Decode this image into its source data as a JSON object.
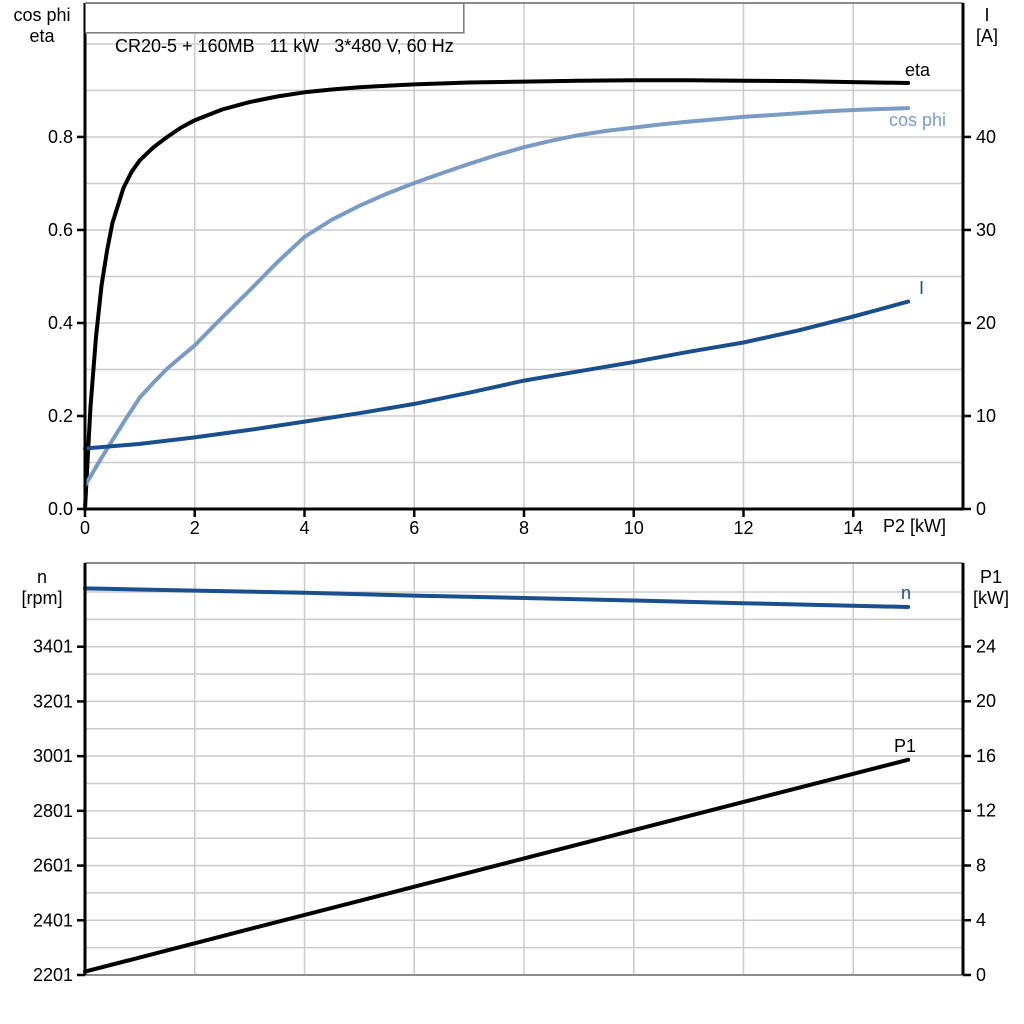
{
  "colors": {
    "curve_black": "#000000",
    "curve_light_blue": "#7a9cc4",
    "curve_dark_blue": "#1a4f8e",
    "grid": "#cbcbcb",
    "frame": "#8c8c8c",
    "axis": "#000000",
    "background": "#ffffff"
  },
  "chart_data": [
    {
      "id": "top",
      "type": "line",
      "title": "CR20-5 + 160MB   11 kW   3*480 V, 60 Hz",
      "x_axis": {
        "label": "P2 [kW]",
        "range": [
          0,
          16
        ],
        "ticks": [
          {
            "v": 0,
            "t": "0"
          },
          {
            "v": 2,
            "t": "2"
          },
          {
            "v": 4,
            "t": "4"
          },
          {
            "v": 6,
            "t": "6"
          },
          {
            "v": 8,
            "t": "8"
          },
          {
            "v": 10,
            "t": "10"
          },
          {
            "v": 12,
            "t": "12"
          },
          {
            "v": 14,
            "t": "14"
          }
        ],
        "grid_values": [
          2,
          4,
          6,
          8,
          10,
          12,
          14
        ]
      },
      "y_left": {
        "label_lines": [
          "cos phi",
          "eta"
        ],
        "range": [
          0,
          1.088
        ],
        "ticks": [
          {
            "v": 0,
            "t": "0.0"
          },
          {
            "v": 0.2,
            "t": "0.2"
          },
          {
            "v": 0.4,
            "t": "0.4"
          },
          {
            "v": 0.6,
            "t": "0.6"
          },
          {
            "v": 0.8,
            "t": "0.8"
          }
        ],
        "grid_from": 0.1,
        "grid_to": 1.0,
        "grid_step": 0.1
      },
      "y_right": {
        "label_lines": [
          "I",
          "[A]"
        ],
        "range": [
          0,
          54.4
        ],
        "ticks": [
          {
            "v": 0,
            "t": "0"
          },
          {
            "v": 10,
            "t": "10"
          },
          {
            "v": 20,
            "t": "20"
          },
          {
            "v": 30,
            "t": "30"
          },
          {
            "v": 40,
            "t": "40"
          }
        ]
      },
      "series": [
        {
          "name": "eta",
          "axis": "left",
          "color_key": "curve_black",
          "points": [
            [
              0,
              0
            ],
            [
              0.1,
              0.22
            ],
            [
              0.2,
              0.37
            ],
            [
              0.3,
              0.48
            ],
            [
              0.4,
              0.555
            ],
            [
              0.5,
              0.615
            ],
            [
              0.7,
              0.69
            ],
            [
              0.85,
              0.725
            ],
            [
              1,
              0.75
            ],
            [
              1.25,
              0.778
            ],
            [
              1.5,
              0.8
            ],
            [
              1.75,
              0.82
            ],
            [
              2,
              0.836
            ],
            [
              2.5,
              0.859
            ],
            [
              3,
              0.875
            ],
            [
              3.5,
              0.887
            ],
            [
              4,
              0.896
            ],
            [
              4.5,
              0.902
            ],
            [
              5,
              0.907
            ],
            [
              5.5,
              0.91
            ],
            [
              6,
              0.913
            ],
            [
              7,
              0.917
            ],
            [
              8,
              0.919
            ],
            [
              9,
              0.921
            ],
            [
              10,
              0.922
            ],
            [
              11,
              0.922
            ],
            [
              12,
              0.921
            ],
            [
              13,
              0.92
            ],
            [
              14,
              0.918
            ],
            [
              15,
              0.916
            ]
          ]
        },
        {
          "name": "cos phi",
          "axis": "left",
          "color_key": "curve_light_blue",
          "points": [
            [
              0,
              0.05
            ],
            [
              0.25,
              0.1
            ],
            [
              0.5,
              0.148
            ],
            [
              0.75,
              0.195
            ],
            [
              1,
              0.24
            ],
            [
              1.25,
              0.272
            ],
            [
              1.5,
              0.302
            ],
            [
              1.75,
              0.327
            ],
            [
              2,
              0.352
            ],
            [
              2.5,
              0.412
            ],
            [
              3,
              0.47
            ],
            [
              3.5,
              0.53
            ],
            [
              4,
              0.585
            ],
            [
              4.5,
              0.622
            ],
            [
              5,
              0.652
            ],
            [
              5.5,
              0.678
            ],
            [
              6,
              0.701
            ],
            [
              6.5,
              0.722
            ],
            [
              7,
              0.742
            ],
            [
              7.5,
              0.761
            ],
            [
              8,
              0.778
            ],
            [
              8.5,
              0.792
            ],
            [
              9,
              0.804
            ],
            [
              9.5,
              0.813
            ],
            [
              10,
              0.82
            ],
            [
              10.5,
              0.827
            ],
            [
              11,
              0.833
            ],
            [
              11.5,
              0.838
            ],
            [
              12,
              0.843
            ],
            [
              12.5,
              0.847
            ],
            [
              13,
              0.851
            ],
            [
              13.5,
              0.855
            ],
            [
              14,
              0.858
            ],
            [
              14.5,
              0.86
            ],
            [
              15,
              0.862
            ]
          ]
        },
        {
          "name": "I",
          "axis": "right",
          "color_key": "curve_dark_blue",
          "points": [
            [
              0,
              6.5
            ],
            [
              1,
              7.0
            ],
            [
              2,
              7.7
            ],
            [
              3,
              8.5
            ],
            [
              4,
              9.4
            ],
            [
              5,
              10.3
            ],
            [
              6,
              11.3
            ],
            [
              7,
              12.5
            ],
            [
              8,
              13.8
            ],
            [
              9,
              14.8
            ],
            [
              10,
              15.8
            ],
            [
              11,
              16.9
            ],
            [
              12,
              17.9
            ],
            [
              13,
              19.2
            ],
            [
              14,
              20.7
            ],
            [
              15,
              22.3
            ]
          ]
        }
      ]
    },
    {
      "id": "bottom",
      "type": "line",
      "title": "",
      "x_axis": {
        "label": "",
        "range": [
          0,
          16
        ],
        "ticks": [],
        "grid_values": [
          2,
          4,
          6,
          8,
          10,
          12,
          14
        ]
      },
      "y_left": {
        "label_lines": [
          "n",
          "[rpm]"
        ],
        "range": [
          2201,
          3707
        ],
        "ticks": [
          {
            "v": 2201,
            "t": "2201"
          },
          {
            "v": 2401,
            "t": "2401"
          },
          {
            "v": 2601,
            "t": "2601"
          },
          {
            "v": 2801,
            "t": "2801"
          },
          {
            "v": 3001,
            "t": "3001"
          },
          {
            "v": 3201,
            "t": "3201"
          },
          {
            "v": 3401,
            "t": "3401"
          }
        ],
        "grid_from": 2301,
        "grid_to": 3601,
        "grid_step": 100
      },
      "y_right": {
        "label_lines": [
          "P1",
          "[kW]"
        ],
        "range": [
          0,
          30.1
        ],
        "ticks": [
          {
            "v": 0,
            "t": "0"
          },
          {
            "v": 4,
            "t": "4"
          },
          {
            "v": 8,
            "t": "8"
          },
          {
            "v": 12,
            "t": "12"
          },
          {
            "v": 16,
            "t": "16"
          },
          {
            "v": 20,
            "t": "20"
          },
          {
            "v": 24,
            "t": "24"
          }
        ]
      },
      "series": [
        {
          "name": "n",
          "axis": "left",
          "color_key": "curve_dark_blue",
          "points": [
            [
              0,
              3614
            ],
            [
              2,
              3606
            ],
            [
              4,
              3598
            ],
            [
              6,
              3588
            ],
            [
              8,
              3579
            ],
            [
              10,
              3570
            ],
            [
              12,
              3560
            ],
            [
              13.5,
              3553
            ],
            [
              15,
              3546
            ]
          ]
        },
        {
          "name": "P1",
          "axis": "right",
          "color_key": "curve_black",
          "points": [
            [
              0,
              0.25
            ],
            [
              3,
              3.35
            ],
            [
              6,
              6.45
            ],
            [
              9,
              9.55
            ],
            [
              12,
              12.65
            ],
            [
              15,
              15.72
            ]
          ]
        }
      ]
    }
  ]
}
